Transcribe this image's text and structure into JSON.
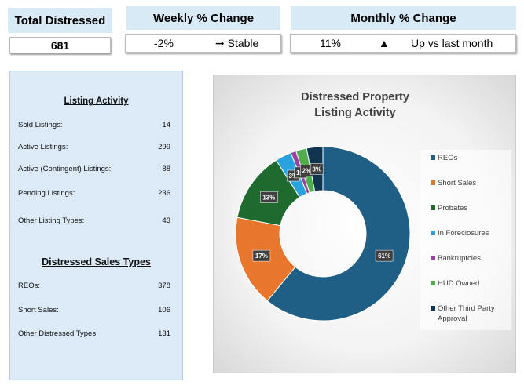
{
  "kpis": {
    "total": {
      "title": "Total Distressed",
      "value": "681"
    },
    "weekly": {
      "title": "Weekly % Change",
      "value": "-2%",
      "status": "➞ Stable"
    },
    "monthly": {
      "title": "Monthly % Change",
      "value": "11%",
      "indicator": "▲",
      "status": "Up vs last month"
    }
  },
  "listing_activity": {
    "title": "Listing Activity",
    "rows": [
      [
        "Sold Listings:",
        14
      ],
      [
        "Active Listings:",
        299
      ],
      [
        "Active (Contingent) Listings:",
        88
      ],
      [
        "Pending Listings:",
        236
      ],
      [
        "Other Listing Types:",
        43
      ]
    ]
  },
  "distressed_sales_types": {
    "title": "Distressed Sales Types",
    "rows": [
      [
        "REOs:",
        378
      ],
      [
        "Short Sales:",
        106
      ],
      [
        "Other Distressed Types",
        131
      ]
    ]
  },
  "chart_data": {
    "type": "donut",
    "title": "Distressed Property Listing Activity",
    "categories": [
      "REOs",
      "Short Sales",
      "Probates",
      "In Foreclosures",
      "Bankruptcies",
      "HUD Owned",
      "Other Third Party Approval"
    ],
    "values": [
      61,
      17,
      13,
      3,
      1,
      2,
      3
    ],
    "value_labels": [
      "61%",
      "17%",
      "13%",
      "3%",
      "1%",
      "2%",
      "3%"
    ],
    "colors": [
      "#1f5f86",
      "#e8762d",
      "#1f6b2f",
      "#2aa3dc",
      "#9b3fa0",
      "#4fae4a",
      "#0f3550"
    ]
  }
}
